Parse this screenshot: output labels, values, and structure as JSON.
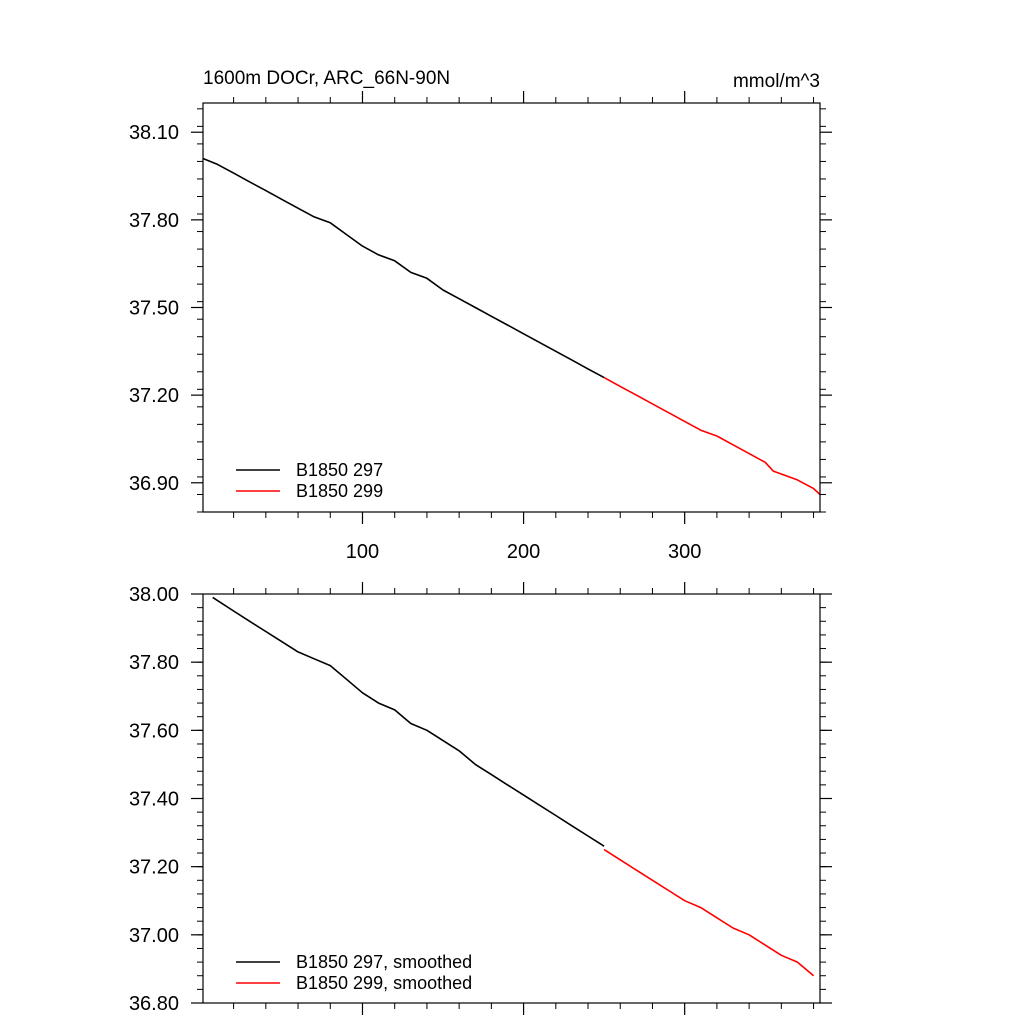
{
  "chart_data": [
    {
      "type": "line",
      "title": "1600m DOCr, ARC_66N-90N",
      "units": "mmol/m^3",
      "xlim": [
        1,
        384
      ],
      "ylim": [
        36.8,
        38.2
      ],
      "x_ticks": [
        100,
        200,
        300
      ],
      "x_tick_labels": [
        "100",
        "200",
        "300"
      ],
      "y_ticks": [
        36.9,
        37.2,
        37.5,
        37.8,
        38.1
      ],
      "y_tick_labels": [
        "36.90",
        "37.20",
        "37.50",
        "37.80",
        "38.10"
      ],
      "legend_position": "bottom-left",
      "series": [
        {
          "name": "B1850 297",
          "color": "#000000",
          "x": [
            1,
            10,
            20,
            30,
            40,
            50,
            60,
            70,
            80,
            90,
            100,
            110,
            120,
            130,
            140,
            150,
            160,
            170,
            180,
            190,
            200,
            210,
            220,
            230,
            240,
            250
          ],
          "y": [
            38.01,
            37.99,
            37.96,
            37.93,
            37.9,
            37.87,
            37.84,
            37.81,
            37.79,
            37.75,
            37.71,
            37.68,
            37.66,
            37.62,
            37.6,
            37.56,
            37.53,
            37.5,
            37.47,
            37.44,
            37.41,
            37.38,
            37.35,
            37.32,
            37.29,
            37.26
          ]
        },
        {
          "name": "B1850 299",
          "color": "#ff0000",
          "x": [
            250,
            260,
            270,
            280,
            290,
            300,
            310,
            320,
            330,
            340,
            350,
            355,
            360,
            370,
            380,
            384
          ],
          "y": [
            37.26,
            37.23,
            37.2,
            37.17,
            37.14,
            37.11,
            37.08,
            37.06,
            37.03,
            37.0,
            36.97,
            36.94,
            36.93,
            36.91,
            36.88,
            36.86
          ]
        }
      ]
    },
    {
      "type": "line",
      "xlim": [
        1,
        384
      ],
      "ylim": [
        36.8,
        38.0
      ],
      "x_ticks": [
        100,
        200,
        300
      ],
      "y_ticks": [
        36.8,
        37.0,
        37.2,
        37.4,
        37.6,
        37.8,
        38.0
      ],
      "y_tick_labels": [
        "36.80",
        "37.00",
        "37.20",
        "37.40",
        "37.60",
        "37.80",
        "38.00"
      ],
      "legend_position": "bottom-left",
      "series": [
        {
          "name": "B1850 297, smoothed",
          "color": "#000000",
          "x": [
            7,
            20,
            30,
            40,
            50,
            60,
            70,
            80,
            90,
            100,
            110,
            120,
            130,
            140,
            150,
            160,
            170,
            180,
            190,
            200,
            210,
            220,
            230,
            240,
            250
          ],
          "y": [
            37.99,
            37.95,
            37.92,
            37.89,
            37.86,
            37.83,
            37.81,
            37.79,
            37.75,
            37.71,
            37.68,
            37.66,
            37.62,
            37.6,
            37.57,
            37.54,
            37.5,
            37.47,
            37.44,
            37.41,
            37.38,
            37.35,
            37.32,
            37.29,
            37.26
          ]
        },
        {
          "name": "B1850 299, smoothed",
          "color": "#ff0000",
          "x": [
            250,
            260,
            270,
            280,
            290,
            300,
            310,
            320,
            330,
            340,
            350,
            360,
            370,
            380
          ],
          "y": [
            37.25,
            37.22,
            37.19,
            37.16,
            37.13,
            37.1,
            37.08,
            37.05,
            37.02,
            37.0,
            36.97,
            36.94,
            36.92,
            36.88
          ]
        }
      ]
    }
  ]
}
